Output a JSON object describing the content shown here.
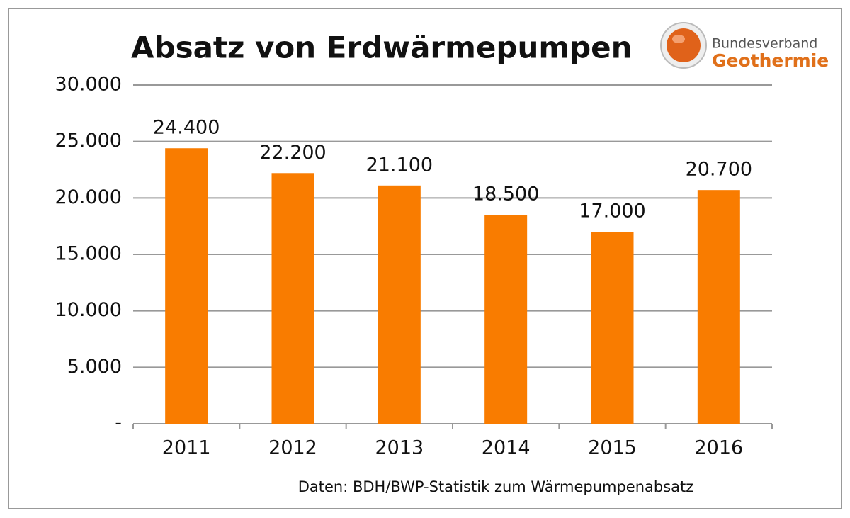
{
  "chart_data": {
    "type": "bar",
    "title": "Absatz von Erdwärmepumpen",
    "categories": [
      "2011",
      "2012",
      "2013",
      "2014",
      "2015",
      "2016"
    ],
    "values": [
      24400,
      22200,
      21100,
      18500,
      17000,
      20700
    ],
    "value_labels": [
      "24.400",
      "22.200",
      "21.100",
      "18.500",
      "17.000",
      "20.700"
    ],
    "color": "#f97c00",
    "ylim": [
      0,
      30000
    ],
    "yticks": [
      {
        "value": 0,
        "label": "-"
      },
      {
        "value": 5000,
        "label": "5.000"
      },
      {
        "value": 10000,
        "label": "10.000"
      },
      {
        "value": 15000,
        "label": "15.000"
      },
      {
        "value": 20000,
        "label": "20.000"
      },
      {
        "value": 25000,
        "label": "25.000"
      },
      {
        "value": 30000,
        "label": "30.000"
      }
    ],
    "grid": true,
    "source": "Daten: BDH/BWP-Statistik zum Wärmepumpenabsatz"
  },
  "logo": {
    "top": "Bundesverband",
    "bottom": "Geothermie"
  }
}
